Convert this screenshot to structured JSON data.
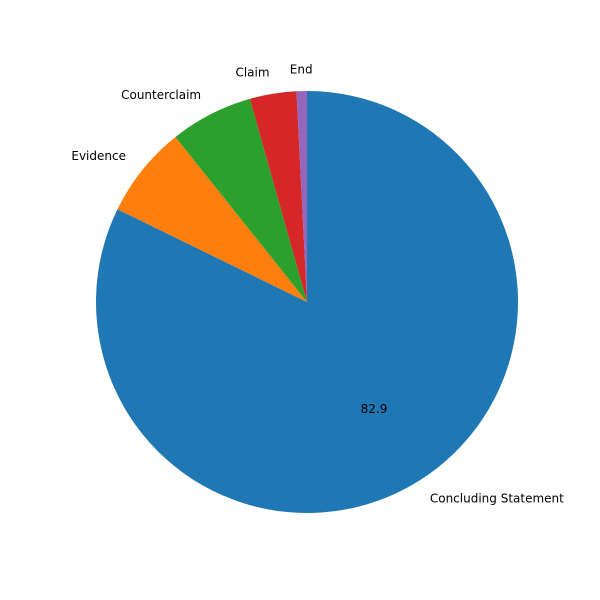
{
  "chart_data": {
    "type": "pie",
    "title": "",
    "categories": [
      "Concluding Statement",
      "Evidence",
      "Counterclaim",
      "Claim",
      "End"
    ],
    "values": [
      82.9,
      7.1,
      6.4,
      3.6,
      0.8
    ],
    "colors": [
      "#1f77b4",
      "#ff7f0e",
      "#2ca02c",
      "#d62728",
      "#9467bd"
    ],
    "value_labels": [
      "82.9",
      "",
      "",
      "",
      ""
    ],
    "start_angle_deg": 90,
    "direction": "clockwise",
    "legend": "none"
  }
}
